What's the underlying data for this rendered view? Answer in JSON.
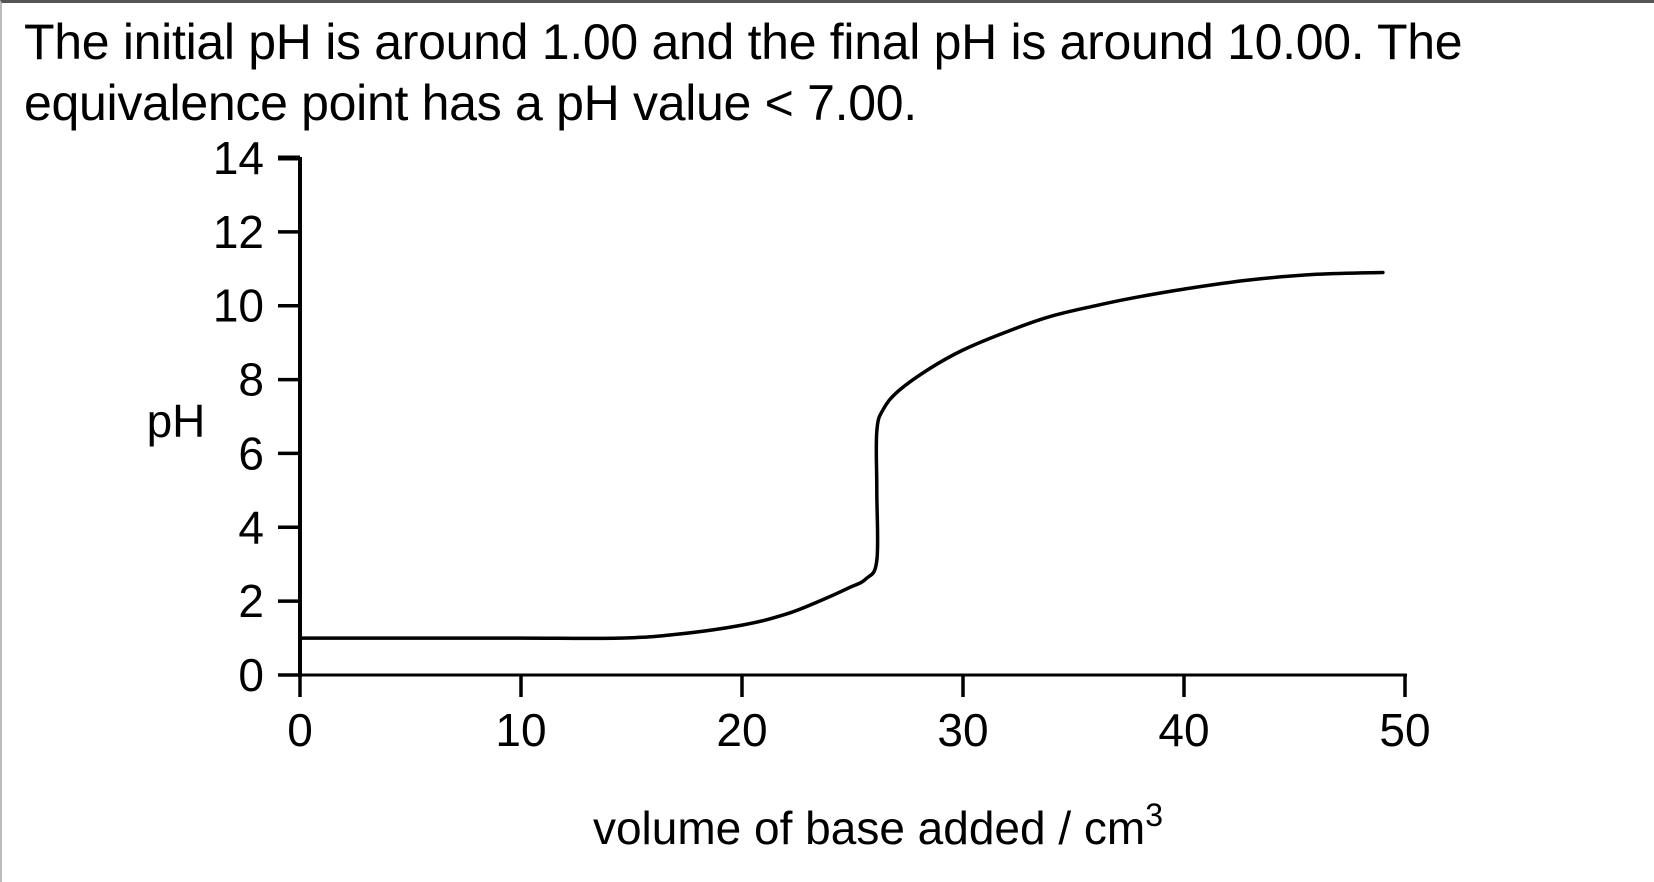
{
  "caption": {
    "line1": "The initial pH is around 1.00 and the final pH is around 10.00. The",
    "line2": "equivalence point has a pH value < 7.00."
  },
  "colors": {
    "axis": "#000000",
    "curve": "#000000",
    "background": "#ffffff"
  },
  "chart_data": {
    "type": "line",
    "title": "",
    "xlabel": "volume of base added / cm3",
    "ylabel": "pH",
    "xlim": [
      0,
      50
    ],
    "ylim": [
      0,
      14
    ],
    "x_ticks": [
      0,
      10,
      20,
      30,
      40,
      50
    ],
    "y_ticks": [
      0,
      2,
      4,
      6,
      8,
      10,
      12,
      14
    ],
    "grid": false,
    "legend": null,
    "series": [
      {
        "name": "titration curve",
        "x": [
          0,
          5,
          10,
          14.5,
          17,
          20,
          22,
          23.5,
          24.8,
          25.6,
          26.1,
          26.1,
          26.1,
          26.4,
          27.1,
          28.5,
          30,
          32,
          33.9,
          36,
          37.6,
          40,
          43,
          46,
          49
        ],
        "y": [
          1.0,
          1.0,
          1.0,
          1.0,
          1.1,
          1.35,
          1.65,
          2.0,
          2.35,
          2.6,
          3.1,
          5.0,
          6.6,
          7.2,
          7.7,
          8.3,
          8.8,
          9.3,
          9.7,
          10.0,
          10.2,
          10.45,
          10.7,
          10.85,
          10.9
        ]
      }
    ],
    "annotations": [
      "Initial pH ≈ 1.00",
      "Final pH ≈ 10.00",
      "Equivalence point pH < 7.00"
    ]
  },
  "axis": {
    "ylabel": "pH",
    "xlabel_main": "volume of base added / cm",
    "xlabel_sup": "3",
    "x_tick_labels": [
      "0",
      "10",
      "20",
      "30",
      "40",
      "50"
    ],
    "y_tick_labels": [
      "0",
      "2",
      "4",
      "6",
      "8",
      "10",
      "12",
      "14"
    ]
  }
}
